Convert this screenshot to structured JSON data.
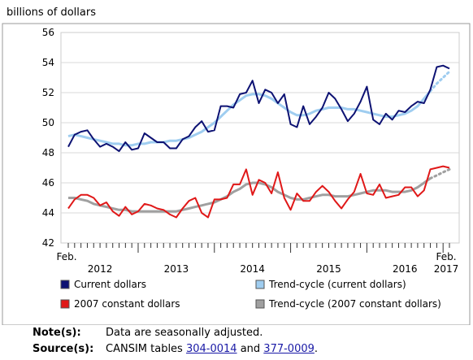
{
  "chart_data": {
    "type": "line",
    "ylabel": "billions of dollars",
    "ylim": [
      42,
      56
    ],
    "yticks": [
      42,
      44,
      46,
      48,
      50,
      52,
      54,
      56
    ],
    "x_start_label": "Feb.",
    "x_end_label": "Feb.",
    "x_end_year": "2017",
    "year_labels": [
      "2012",
      "2013",
      "2014",
      "2015",
      "2016"
    ],
    "grid": "horizontal",
    "legend_position": "bottom",
    "colors": {
      "current": "#0d1273",
      "trend_current": "#9fcdf0",
      "constant": "#e01818",
      "trend_constant": "#a0a0a0"
    },
    "series": [
      {
        "name": "Current dollars",
        "values": [
          48.4,
          49.2,
          49.4,
          49.5,
          48.9,
          48.4,
          48.6,
          48.4,
          48.1,
          48.7,
          48.2,
          48.3,
          49.3,
          49.0,
          48.7,
          48.7,
          48.3,
          48.3,
          48.9,
          49.1,
          49.7,
          50.1,
          49.4,
          49.5,
          51.1,
          51.1,
          51.0,
          51.9,
          52.0,
          52.8,
          51.3,
          52.2,
          52.0,
          51.3,
          51.9,
          49.9,
          49.7,
          51.1,
          49.9,
          50.4,
          51.0,
          52.0,
          51.6,
          50.9,
          50.1,
          50.6,
          51.4,
          52.4,
          50.2,
          49.9,
          50.6,
          50.2,
          50.8,
          50.7,
          51.1,
          51.4,
          51.3,
          52.2,
          53.7,
          53.8,
          53.6
        ]
      },
      {
        "name": "Trend-cycle (current dollars)",
        "values": [
          49.1,
          49.2,
          49.1,
          49.0,
          48.9,
          48.8,
          48.7,
          48.6,
          48.6,
          48.5,
          48.5,
          48.6,
          48.6,
          48.7,
          48.7,
          48.7,
          48.8,
          48.8,
          48.9,
          49.0,
          49.2,
          49.4,
          49.7,
          50.0,
          50.4,
          50.8,
          51.2,
          51.5,
          51.8,
          51.9,
          51.9,
          51.8,
          51.6,
          51.3,
          51.0,
          50.7,
          50.5,
          50.5,
          50.6,
          50.8,
          50.9,
          51.0,
          51.0,
          51.0,
          50.9,
          50.9,
          50.8,
          50.7,
          50.6,
          50.5,
          50.4,
          50.4,
          50.5,
          50.6,
          50.8,
          51.1,
          51.6,
          52.1,
          52.6,
          53.0,
          53.4
        ]
      },
      {
        "name": "2007 constant dollars",
        "values": [
          44.3,
          44.9,
          45.2,
          45.2,
          45.0,
          44.5,
          44.7,
          44.1,
          43.8,
          44.4,
          43.9,
          44.1,
          44.6,
          44.5,
          44.3,
          44.2,
          43.9,
          43.7,
          44.3,
          44.8,
          45.0,
          44.0,
          43.7,
          44.9,
          44.9,
          45.0,
          45.9,
          45.9,
          46.9,
          45.2,
          46.2,
          46.0,
          45.3,
          46.7,
          45.0,
          44.2,
          45.3,
          44.8,
          44.8,
          45.4,
          45.8,
          45.4,
          44.8,
          44.3,
          44.9,
          45.4,
          46.6,
          45.3,
          45.2,
          45.9,
          45.0,
          45.1,
          45.2,
          45.7,
          45.7,
          45.1,
          45.5,
          46.9,
          47.0,
          47.1,
          47.0
        ]
      },
      {
        "name": "Trend-cycle (2007 constant dollars)",
        "values": [
          45.0,
          45.0,
          44.9,
          44.8,
          44.6,
          44.5,
          44.4,
          44.3,
          44.2,
          44.2,
          44.1,
          44.1,
          44.1,
          44.1,
          44.1,
          44.1,
          44.1,
          44.1,
          44.2,
          44.3,
          44.4,
          44.5,
          44.6,
          44.7,
          44.9,
          45.1,
          45.4,
          45.6,
          45.9,
          46.0,
          46.0,
          45.9,
          45.7,
          45.4,
          45.2,
          45.0,
          44.9,
          44.9,
          45.0,
          45.1,
          45.2,
          45.2,
          45.1,
          45.1,
          45.1,
          45.2,
          45.3,
          45.4,
          45.5,
          45.5,
          45.5,
          45.4,
          45.4,
          45.4,
          45.5,
          45.7,
          46.0,
          46.3,
          46.5,
          46.7,
          46.9
        ]
      }
    ]
  },
  "notes": {
    "note_label": "Note(s):",
    "note_text": "Data are seasonally adjusted.",
    "source_label": "Source(s):",
    "source_prefix": "CANSIM tables ",
    "source_table1": "304-0014",
    "source_and": " and ",
    "source_table2": "377-0009",
    "source_suffix": "."
  }
}
